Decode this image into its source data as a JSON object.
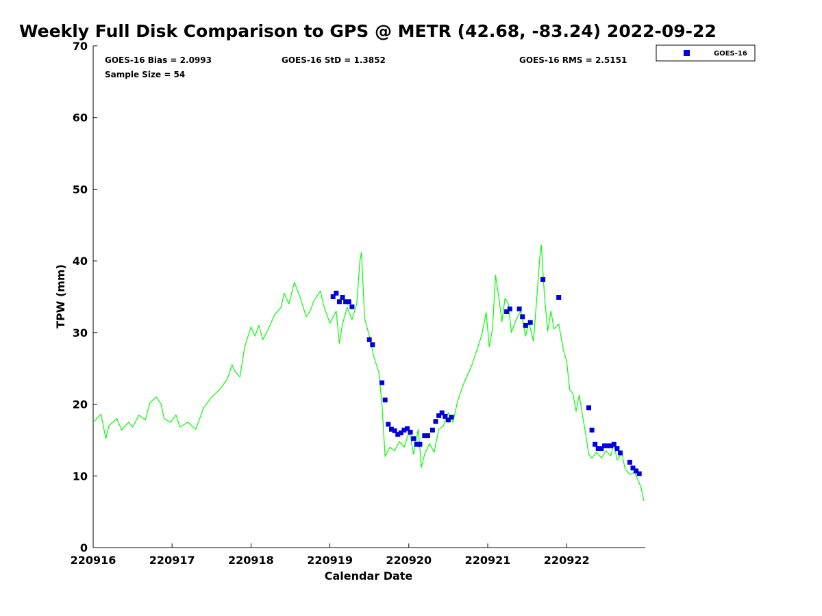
{
  "chart_data": {
    "type": "line",
    "title": "Weekly Full Disk Comparison to GPS @ METR (42.68, -83.24) 2022-09-22",
    "xlabel": "Calendar Date",
    "ylabel": "TPW (mm)",
    "xlim": [
      0,
      7
    ],
    "ylim": [
      0,
      70
    ],
    "x_ticks": [
      0,
      1,
      2,
      3,
      4,
      5,
      6
    ],
    "x_tick_labels": [
      "220916",
      "220917",
      "220918",
      "220919",
      "220920",
      "220921",
      "220922"
    ],
    "y_ticks": [
      0,
      10,
      20,
      30,
      40,
      50,
      60,
      70
    ],
    "y_tick_labels": [
      "0",
      "10",
      "20",
      "30",
      "40",
      "50",
      "60",
      "70"
    ],
    "stats": {
      "bias": "GOES-16 Bias = 2.0993",
      "std": "GOES-16 StD = 1.3852",
      "rms": "GOES-16 RMS = 2.5151",
      "sample": "Sample Size = 54"
    },
    "legend": {
      "label": "GOES-16",
      "position": "top-right-outside"
    },
    "series": [
      {
        "name": "GPS",
        "color": "#00ff00",
        "style": "line",
        "points": [
          [
            0,
            17.5
          ],
          [
            0.1,
            18.6
          ],
          [
            0.16,
            15.2
          ],
          [
            0.2,
            17
          ],
          [
            0.3,
            18
          ],
          [
            0.36,
            16.4
          ],
          [
            0.45,
            17.5
          ],
          [
            0.5,
            16.8
          ],
          [
            0.58,
            18.5
          ],
          [
            0.66,
            17.8
          ],
          [
            0.72,
            20.2
          ],
          [
            0.8,
            21
          ],
          [
            0.86,
            20
          ],
          [
            0.9,
            18
          ],
          [
            0.98,
            17.5
          ],
          [
            1.05,
            18.5
          ],
          [
            1.1,
            16.8
          ],
          [
            1.2,
            17.5
          ],
          [
            1.3,
            16.5
          ],
          [
            1.4,
            19.5
          ],
          [
            1.5,
            21
          ],
          [
            1.6,
            22
          ],
          [
            1.7,
            23.5
          ],
          [
            1.76,
            25.5
          ],
          [
            1.8,
            24.5
          ],
          [
            1.86,
            23.8
          ],
          [
            1.92,
            28
          ],
          [
            2.0,
            30.8
          ],
          [
            2.05,
            29.5
          ],
          [
            2.1,
            31
          ],
          [
            2.15,
            29
          ],
          [
            2.22,
            30.5
          ],
          [
            2.3,
            32.5
          ],
          [
            2.38,
            33.5
          ],
          [
            2.42,
            35.5
          ],
          [
            2.48,
            34
          ],
          [
            2.55,
            37
          ],
          [
            2.62,
            35
          ],
          [
            2.7,
            32.2
          ],
          [
            2.75,
            33
          ],
          [
            2.8,
            34.5
          ],
          [
            2.88,
            35.8
          ],
          [
            2.92,
            33.8
          ],
          [
            3.0,
            31.3
          ],
          [
            3.08,
            33
          ],
          [
            3.12,
            28.5
          ],
          [
            3.16,
            31.2
          ],
          [
            3.22,
            33.5
          ],
          [
            3.28,
            31.8
          ],
          [
            3.34,
            34
          ],
          [
            3.38,
            40
          ],
          [
            3.4,
            41.2
          ],
          [
            3.44,
            32
          ],
          [
            3.5,
            29.5
          ],
          [
            3.56,
            26.5
          ],
          [
            3.62,
            24.5
          ],
          [
            3.66,
            20
          ],
          [
            3.7,
            12.7
          ],
          [
            3.76,
            14
          ],
          [
            3.82,
            13.5
          ],
          [
            3.88,
            14.8
          ],
          [
            3.94,
            14
          ],
          [
            4.0,
            16
          ],
          [
            4.02,
            15.5
          ],
          [
            4.06,
            13
          ],
          [
            4.12,
            16.5
          ],
          [
            4.16,
            11.2
          ],
          [
            4.2,
            13
          ],
          [
            4.26,
            14.5
          ],
          [
            4.32,
            13.3
          ],
          [
            4.38,
            16.5
          ],
          [
            4.44,
            17
          ],
          [
            4.5,
            18.8
          ],
          [
            4.56,
            17.5
          ],
          [
            4.62,
            20.5
          ],
          [
            4.7,
            23
          ],
          [
            4.8,
            25.5
          ],
          [
            4.86,
            27.5
          ],
          [
            4.92,
            29.5
          ],
          [
            4.98,
            32.8
          ],
          [
            5.02,
            28
          ],
          [
            5.06,
            30.5
          ],
          [
            5.1,
            38
          ],
          [
            5.14,
            35
          ],
          [
            5.18,
            31.5
          ],
          [
            5.22,
            34.8
          ],
          [
            5.26,
            34
          ],
          [
            5.3,
            30
          ],
          [
            5.36,
            31.8
          ],
          [
            5.42,
            33
          ],
          [
            5.48,
            29.5
          ],
          [
            5.52,
            31.5
          ],
          [
            5.58,
            28.8
          ],
          [
            5.62,
            34.5
          ],
          [
            5.66,
            40.5
          ],
          [
            5.68,
            42.2
          ],
          [
            5.72,
            35
          ],
          [
            5.76,
            30.2
          ],
          [
            5.8,
            33
          ],
          [
            5.84,
            30.5
          ],
          [
            5.9,
            31.2
          ],
          [
            5.96,
            27.5
          ],
          [
            6.0,
            26
          ],
          [
            6.04,
            22
          ],
          [
            6.08,
            21.5
          ],
          [
            6.12,
            19
          ],
          [
            6.16,
            21.3
          ],
          [
            6.2,
            18.5
          ],
          [
            6.24,
            16
          ],
          [
            6.28,
            13
          ],
          [
            6.32,
            12.5
          ],
          [
            6.38,
            13.3
          ],
          [
            6.44,
            12.5
          ],
          [
            6.5,
            13.5
          ],
          [
            6.56,
            12.8
          ],
          [
            6.6,
            14.5
          ],
          [
            6.64,
            12.2
          ],
          [
            6.7,
            13.2
          ],
          [
            6.74,
            11
          ],
          [
            6.8,
            10.2
          ],
          [
            6.86,
            10.5
          ],
          [
            6.9,
            9.5
          ],
          [
            6.94,
            8.5
          ],
          [
            6.98,
            6.5
          ]
        ]
      },
      {
        "name": "GOES-16",
        "color": "#0000dd",
        "style": "square-marker",
        "points": [
          [
            3.04,
            35
          ],
          [
            3.08,
            35.5
          ],
          [
            3.12,
            34.3
          ],
          [
            3.16,
            34.9
          ],
          [
            3.2,
            34.3
          ],
          [
            3.24,
            34.3
          ],
          [
            3.28,
            33.6
          ],
          [
            3.5,
            29
          ],
          [
            3.54,
            28.3
          ],
          [
            3.66,
            23
          ],
          [
            3.7,
            20.6
          ],
          [
            3.74,
            17.2
          ],
          [
            3.78,
            16.5
          ],
          [
            3.82,
            16.3
          ],
          [
            3.86,
            15.8
          ],
          [
            3.9,
            16
          ],
          [
            3.94,
            16.4
          ],
          [
            3.98,
            16.6
          ],
          [
            4.02,
            16.1
          ],
          [
            4.06,
            15.2
          ],
          [
            4.1,
            14.4
          ],
          [
            4.14,
            14.4
          ],
          [
            4.2,
            15.6
          ],
          [
            4.24,
            15.6
          ],
          [
            4.3,
            16.4
          ],
          [
            4.34,
            17.6
          ],
          [
            4.38,
            18.4
          ],
          [
            4.42,
            18.8
          ],
          [
            4.46,
            18.3
          ],
          [
            4.5,
            17.8
          ],
          [
            4.54,
            18.2
          ],
          [
            5.24,
            32.9
          ],
          [
            5.28,
            33.3
          ],
          [
            5.4,
            33.3
          ],
          [
            5.44,
            32.2
          ],
          [
            5.48,
            31
          ],
          [
            5.54,
            31.4
          ],
          [
            5.7,
            37.4
          ],
          [
            5.9,
            34.9
          ],
          [
            6.28,
            19.5
          ],
          [
            6.32,
            16.4
          ],
          [
            6.36,
            14.4
          ],
          [
            6.4,
            13.8
          ],
          [
            6.44,
            13.8
          ],
          [
            6.48,
            14.2
          ],
          [
            6.52,
            14.2
          ],
          [
            6.56,
            14.2
          ],
          [
            6.6,
            14.4
          ],
          [
            6.64,
            13.8
          ],
          [
            6.68,
            13.2
          ],
          [
            6.8,
            11.9
          ],
          [
            6.84,
            11.1
          ],
          [
            6.88,
            10.7
          ],
          [
            6.92,
            10.3
          ]
        ]
      }
    ]
  }
}
